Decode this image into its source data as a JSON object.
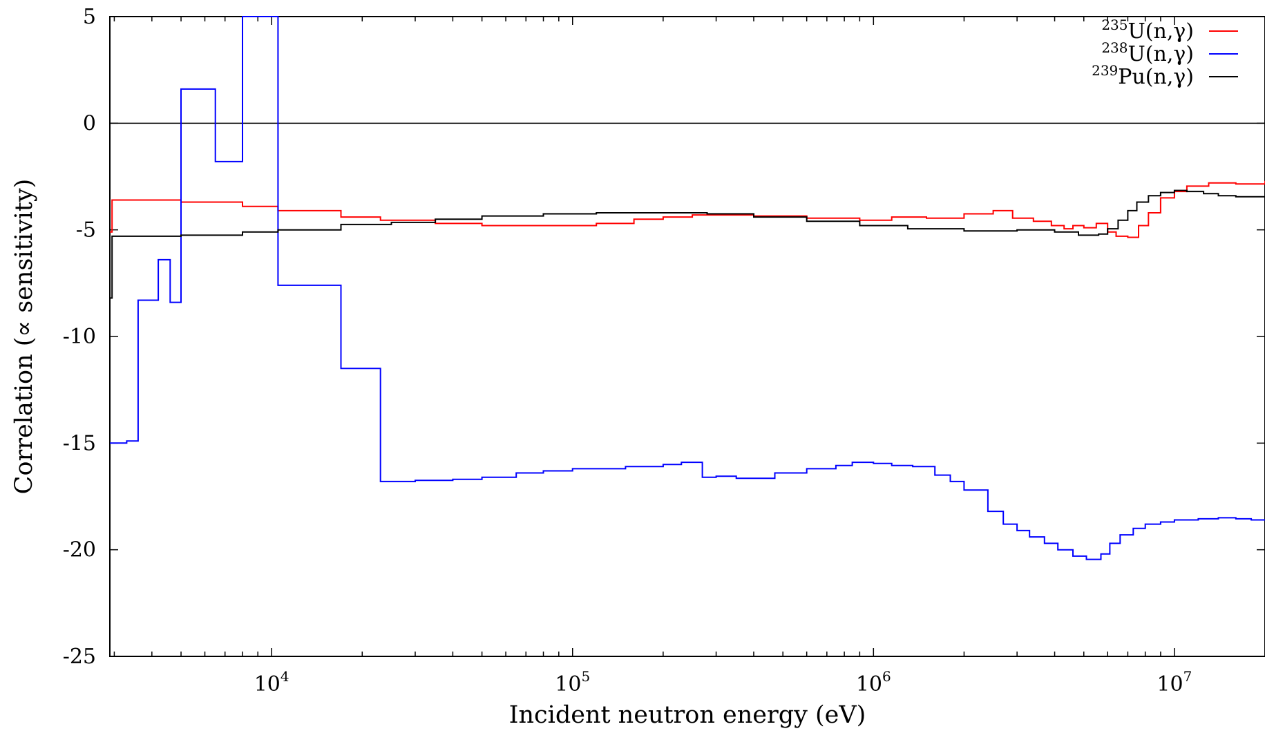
{
  "chart_data": {
    "type": "line",
    "xlabel": "Incident neutron energy (eV)",
    "ylabel": "Correlation (∝ sensitivity)",
    "xscale": "log",
    "xlim": [
      2900,
      20000000
    ],
    "ylim": [
      -25,
      5
    ],
    "grid": false,
    "legend_position": "top-right",
    "x_ticks": [
      {
        "value": 10000,
        "base": "10",
        "exp": "4"
      },
      {
        "value": 100000,
        "base": "10",
        "exp": "5"
      },
      {
        "value": 1000000,
        "base": "10",
        "exp": "6"
      },
      {
        "value": 10000000,
        "base": "10",
        "exp": "7"
      }
    ],
    "y_ticks": [
      5,
      0,
      -5,
      -10,
      -15,
      -20,
      -25
    ],
    "zero_line": 0,
    "series": [
      {
        "name": "U(n,γ)",
        "isotope": "235",
        "color": "#ff0000",
        "x": [
          2900,
          2950,
          5000,
          8000,
          10500,
          17000,
          23000,
          35000,
          50000,
          80000,
          120000,
          160000,
          200000,
          250000,
          280000,
          400000,
          600000,
          900000,
          1150000,
          1500000,
          2000000,
          2500000,
          2900000,
          3400000,
          3900000,
          4300000,
          4600000,
          5000000,
          5500000,
          6000000,
          6400000,
          7000000,
          7600000,
          8200000,
          9000000,
          10000000,
          11000000,
          13000000,
          16000000,
          20000000
        ],
        "y": [
          -5.1,
          -3.6,
          -3.7,
          -3.9,
          -4.1,
          -4.4,
          -4.55,
          -4.7,
          -4.8,
          -4.8,
          -4.7,
          -4.5,
          -4.4,
          -4.3,
          -4.3,
          -4.35,
          -4.45,
          -4.55,
          -4.4,
          -4.45,
          -4.25,
          -4.1,
          -4.45,
          -4.6,
          -4.8,
          -4.95,
          -4.8,
          -4.9,
          -4.7,
          -5.1,
          -5.3,
          -5.35,
          -4.8,
          -4.2,
          -3.5,
          -3.2,
          -2.95,
          -2.8,
          -2.85,
          -2.7
        ]
      },
      {
        "name": "U(n,γ)",
        "isotope": "238",
        "color": "#0000ff",
        "x": [
          2900,
          3300,
          3600,
          4200,
          4600,
          5000,
          6500,
          8000,
          10500,
          17000,
          23000,
          30000,
          40000,
          50000,
          65000,
          80000,
          100000,
          150000,
          200000,
          230000,
          270000,
          300000,
          350000,
          470000,
          600000,
          750000,
          850000,
          1000000,
          1150000,
          1350000,
          1600000,
          1800000,
          2000000,
          2400000,
          2700000,
          3000000,
          3300000,
          3700000,
          4100000,
          4600000,
          5100000,
          5700000,
          6100000,
          6600000,
          7300000,
          8000000,
          9000000,
          10000000,
          12000000,
          14000000,
          16000000,
          18000000,
          20000000
        ],
        "y": [
          -15,
          -14.9,
          -8.3,
          -6.4,
          -8.4,
          1.6,
          -1.8,
          5.5,
          -7.6,
          -11.5,
          -16.8,
          -16.75,
          -16.7,
          -16.6,
          -16.4,
          -16.3,
          -16.2,
          -16.1,
          -16.0,
          -15.9,
          -16.6,
          -16.55,
          -16.65,
          -16.4,
          -16.2,
          -16.05,
          -15.9,
          -15.95,
          -16.05,
          -16.1,
          -16.5,
          -16.8,
          -17.2,
          -18.2,
          -18.8,
          -19.1,
          -19.4,
          -19.7,
          -20.0,
          -20.3,
          -20.45,
          -20.2,
          -19.7,
          -19.3,
          -19.0,
          -18.8,
          -18.7,
          -18.6,
          -18.55,
          -18.5,
          -18.55,
          -18.6,
          -18.6
        ]
      },
      {
        "name": "Pu(n,γ)",
        "isotope": "239",
        "color": "#000000",
        "x": [
          2900,
          2950,
          5000,
          8000,
          10500,
          17000,
          25000,
          35000,
          50000,
          80000,
          120000,
          200000,
          280000,
          400000,
          600000,
          900000,
          1300000,
          2000000,
          3000000,
          4000000,
          4800000,
          5600000,
          6000000,
          6500000,
          7000000,
          7500000,
          8200000,
          9000000,
          10000000,
          11000000,
          12500000,
          14000000,
          16000000,
          20000000
        ],
        "y": [
          -8.2,
          -5.3,
          -5.25,
          -5.1,
          -5.0,
          -4.75,
          -4.65,
          -4.5,
          -4.35,
          -4.25,
          -4.2,
          -4.2,
          -4.25,
          -4.4,
          -4.6,
          -4.8,
          -4.95,
          -5.05,
          -5.0,
          -5.1,
          -5.25,
          -5.2,
          -4.95,
          -4.55,
          -4.1,
          -3.7,
          -3.4,
          -3.25,
          -3.15,
          -3.2,
          -3.3,
          -3.4,
          -3.45,
          -3.35
        ]
      }
    ]
  }
}
